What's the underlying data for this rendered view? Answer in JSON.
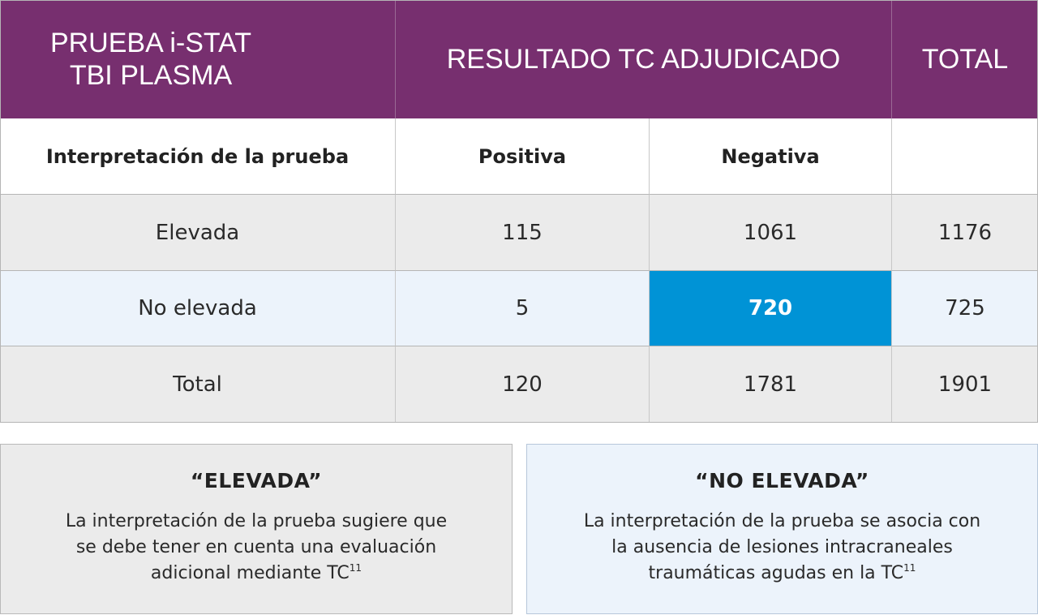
{
  "header": {
    "col1_line1": "PRUEBA i-STAT",
    "col1_line2": "TBI PLASMA",
    "col2": "RESULTADO TC ADJUDICADO",
    "col3": "TOTAL"
  },
  "subheader": {
    "col1": "Interpretación de la prueba",
    "col2": "Positiva",
    "col3": "Negativa",
    "col4": ""
  },
  "rows": [
    {
      "label": "Elevada",
      "positiva": "115",
      "negativa": "1061",
      "total": "1176"
    },
    {
      "label": "No elevada",
      "positiva": "5",
      "negativa": "720",
      "total": "725"
    },
    {
      "label": "Total",
      "positiva": "120",
      "negativa": "1781",
      "total": "1901"
    }
  ],
  "highlight_color": "#0093d6",
  "header_color": "#772f6f",
  "boxes": {
    "elevada": {
      "title": "“ELEVADA”",
      "line1": "La interpretación de la prueba sugiere que",
      "line2": "se debe tener en cuenta una evaluación",
      "line3": "adicional mediante TC",
      "ref": "11"
    },
    "no_elevada": {
      "title": "“NO ELEVADA”",
      "line1": "La interpretación de la prueba se asocia con",
      "line2": "la ausencia de lesiones intracraneales",
      "line3": "traumáticas agudas en la TC",
      "ref": "11"
    }
  }
}
